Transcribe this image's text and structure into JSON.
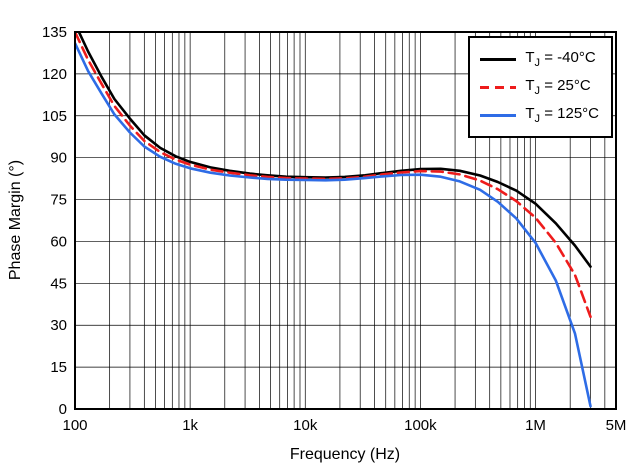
{
  "chart_data": {
    "type": "line",
    "title": "",
    "xlabel": "Frequency (Hz)",
    "ylabel": "Phase Margin (°)",
    "x_scale": "log",
    "xlim": [
      100,
      5000000
    ],
    "ylim": [
      0,
      135
    ],
    "y_ticks": [
      0,
      15,
      30,
      45,
      60,
      75,
      90,
      105,
      120,
      135
    ],
    "x_major_ticks": [
      100,
      1000,
      10000,
      100000,
      1000000,
      5000000
    ],
    "x_tick_labels": [
      "100",
      "1k",
      "10k",
      "100k",
      "1M",
      "5M"
    ],
    "grid": true,
    "legend_position": "top-right",
    "x": [
      100,
      130,
      170,
      220,
      300,
      400,
      550,
      750,
      1000,
      1500,
      2200,
      3300,
      4700,
      6800,
      10000,
      15000,
      22000,
      33000,
      47000,
      68000,
      100000,
      150000,
      220000,
      330000,
      470000,
      680000,
      1000000,
      1500000,
      2200000,
      3000000
    ],
    "series": [
      {
        "name": "TJ = -40°C",
        "color": "#000000",
        "dash": "solid",
        "values": [
          138,
          128,
          119,
          111,
          104,
          98,
          93.5,
          90.5,
          88.5,
          86.5,
          85.3,
          84.3,
          83.7,
          83.2,
          83.0,
          82.9,
          83.1,
          83.7,
          84.5,
          85.3,
          85.9,
          86.0,
          85.3,
          83.6,
          81.3,
          78.2,
          73.5,
          66.5,
          58.5,
          51
        ]
      },
      {
        "name": "TJ = 25°C",
        "color": "#ee1c1c",
        "dash": "dashed",
        "values": [
          135,
          125,
          116.5,
          108.5,
          101.5,
          96,
          92,
          89.3,
          87.5,
          85.7,
          84.6,
          83.7,
          83.1,
          82.7,
          82.5,
          82.4,
          82.6,
          83.2,
          84.0,
          84.7,
          85.2,
          85.0,
          84.0,
          81.8,
          78.7,
          74.5,
          68.5,
          59.5,
          48,
          33
        ]
      },
      {
        "name": "TJ = 125°C",
        "color": "#2e6ce6",
        "dash": "solid",
        "values": [
          131,
          121,
          113,
          105.5,
          99,
          94,
          90.3,
          87.8,
          86.2,
          84.6,
          83.6,
          82.9,
          82.4,
          82.1,
          82.0,
          81.9,
          82.1,
          82.7,
          83.3,
          83.8,
          83.9,
          83.2,
          81.5,
          78.5,
          74.2,
          68.3,
          59.5,
          46,
          27,
          1
        ]
      }
    ]
  },
  "legend": {
    "entries": [
      {
        "pre": "T",
        "sub": "J",
        "post": " = -40°C"
      },
      {
        "pre": "T",
        "sub": "J",
        "post": " = 25°C"
      },
      {
        "pre": "T",
        "sub": "J",
        "post": " = 125°C"
      }
    ]
  }
}
